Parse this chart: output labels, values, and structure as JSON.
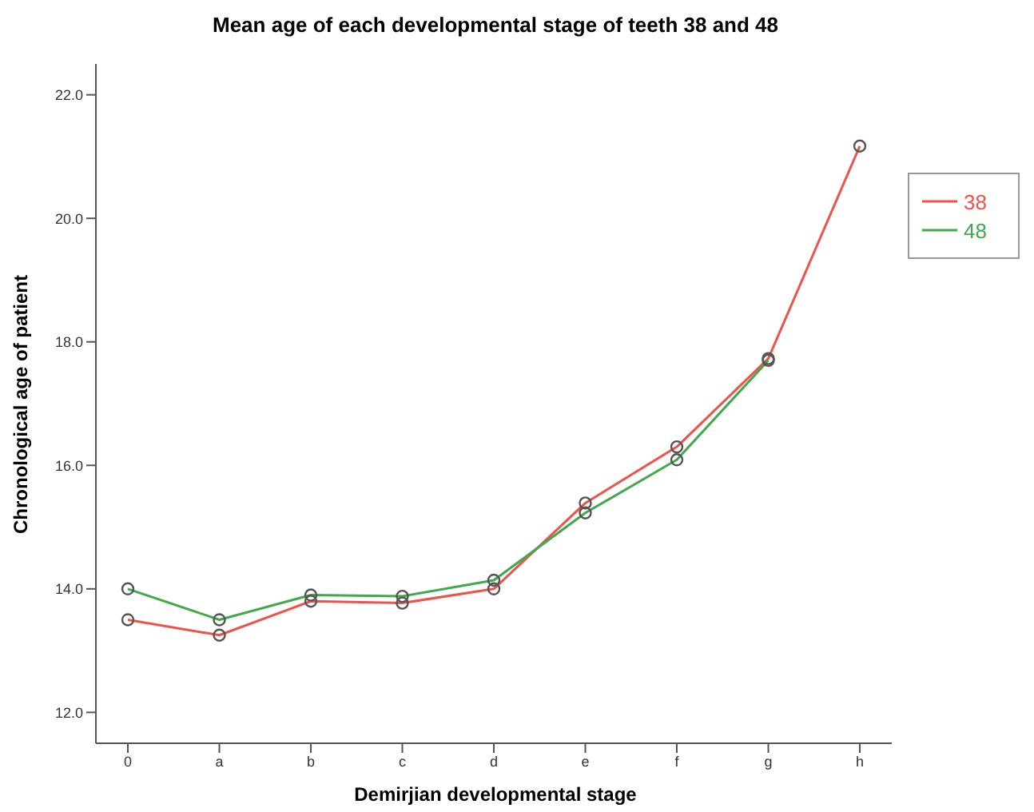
{
  "chart_data": {
    "type": "line",
    "title": "Mean age of each developmental stage of teeth 38 and 48",
    "xlabel": "Demirjian developmental stage",
    "ylabel": "Chronological age of patient",
    "categories": [
      "0",
      "a",
      "b",
      "c",
      "d",
      "e",
      "f",
      "g",
      "h"
    ],
    "series": [
      {
        "name": "38",
        "color": "#f0524a",
        "values": [
          13.5,
          13.25,
          13.8,
          13.77,
          14.0,
          15.39,
          16.3,
          17.73,
          21.17
        ]
      },
      {
        "name": "48",
        "color": "#3fa94c",
        "values": [
          14.0,
          13.5,
          13.9,
          13.88,
          14.14,
          15.23,
          16.09,
          17.7,
          null
        ]
      }
    ],
    "ylim": [
      11.5,
      22.5
    ],
    "yticks": [
      {
        "value": 12,
        "label": "12.0"
      },
      {
        "value": 14,
        "label": "14.0"
      },
      {
        "value": 16,
        "label": "16.0"
      },
      {
        "value": 18,
        "label": "18.0"
      },
      {
        "value": 20,
        "label": "20.0"
      },
      {
        "value": 22,
        "label": "22.0"
      }
    ],
    "grid": false,
    "legend": "top right",
    "marker": "circle",
    "line_style": "solid"
  }
}
